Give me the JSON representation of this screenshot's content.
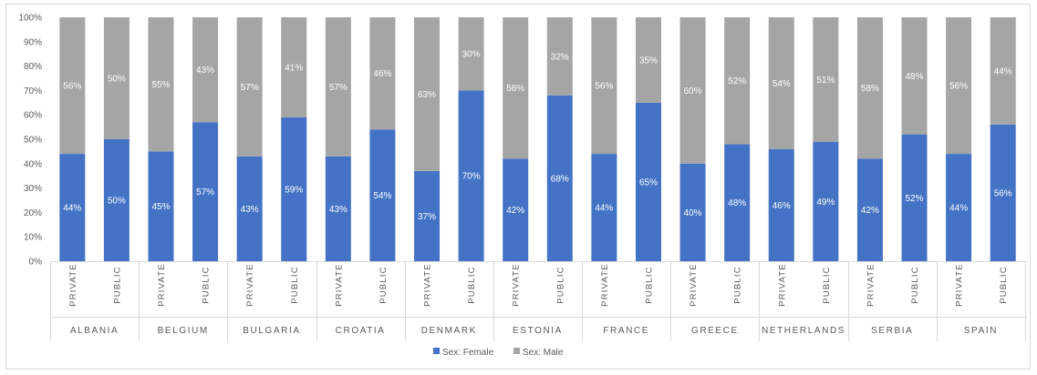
{
  "chart_data": {
    "type": "bar",
    "stacked": true,
    "percent_stacked": true,
    "groups": [
      "ALBANIA",
      "BELGIUM",
      "BULGARIA",
      "CROATIA",
      "DENMARK",
      "ESTONIA",
      "FRANCE",
      "GREECE",
      "NETHERLANDS",
      "SERBIA",
      "SPAIN"
    ],
    "subcategories": [
      "PRIVATE",
      "PUBLIC"
    ],
    "series": [
      {
        "name": "Sex: Female",
        "color": "#4472c4",
        "values": [
          44,
          50,
          45,
          57,
          43,
          59,
          43,
          54,
          37,
          70,
          42,
          68,
          44,
          65,
          40,
          48,
          46,
          49,
          42,
          52,
          44,
          56
        ],
        "labels": [
          "44%",
          "50%",
          "45%",
          "57%",
          "43%",
          "59%",
          "43%",
          "54%",
          "37%",
          "70%",
          "42%",
          "68%",
          "44%",
          "65%",
          "40%",
          "48%",
          "46%",
          "49%",
          "42%",
          "52%",
          "44%",
          "56%"
        ]
      },
      {
        "name": "Sex: Male",
        "color": "#a5a5a5",
        "values": [
          56,
          50,
          55,
          43,
          57,
          41,
          57,
          46,
          63,
          30,
          58,
          32,
          56,
          35,
          60,
          52,
          54,
          51,
          58,
          48,
          56,
          44
        ],
        "labels": [
          "56%",
          "50%",
          "55%",
          "43%",
          "57%",
          "41%",
          "57%",
          "46%",
          "63%",
          "30%",
          "58%",
          "32%",
          "56%",
          "35%",
          "60%",
          "52%",
          "54%",
          "51%",
          "58%",
          "48%",
          "56%",
          "44%"
        ]
      }
    ],
    "y_ticks": [
      "0%",
      "10%",
      "20%",
      "30%",
      "40%",
      "50%",
      "60%",
      "70%",
      "80%",
      "90%",
      "100%"
    ],
    "ylim": [
      0,
      100
    ],
    "title": "",
    "xlabel": "",
    "ylabel": "",
    "legend_position": "bottom",
    "grid": false
  }
}
